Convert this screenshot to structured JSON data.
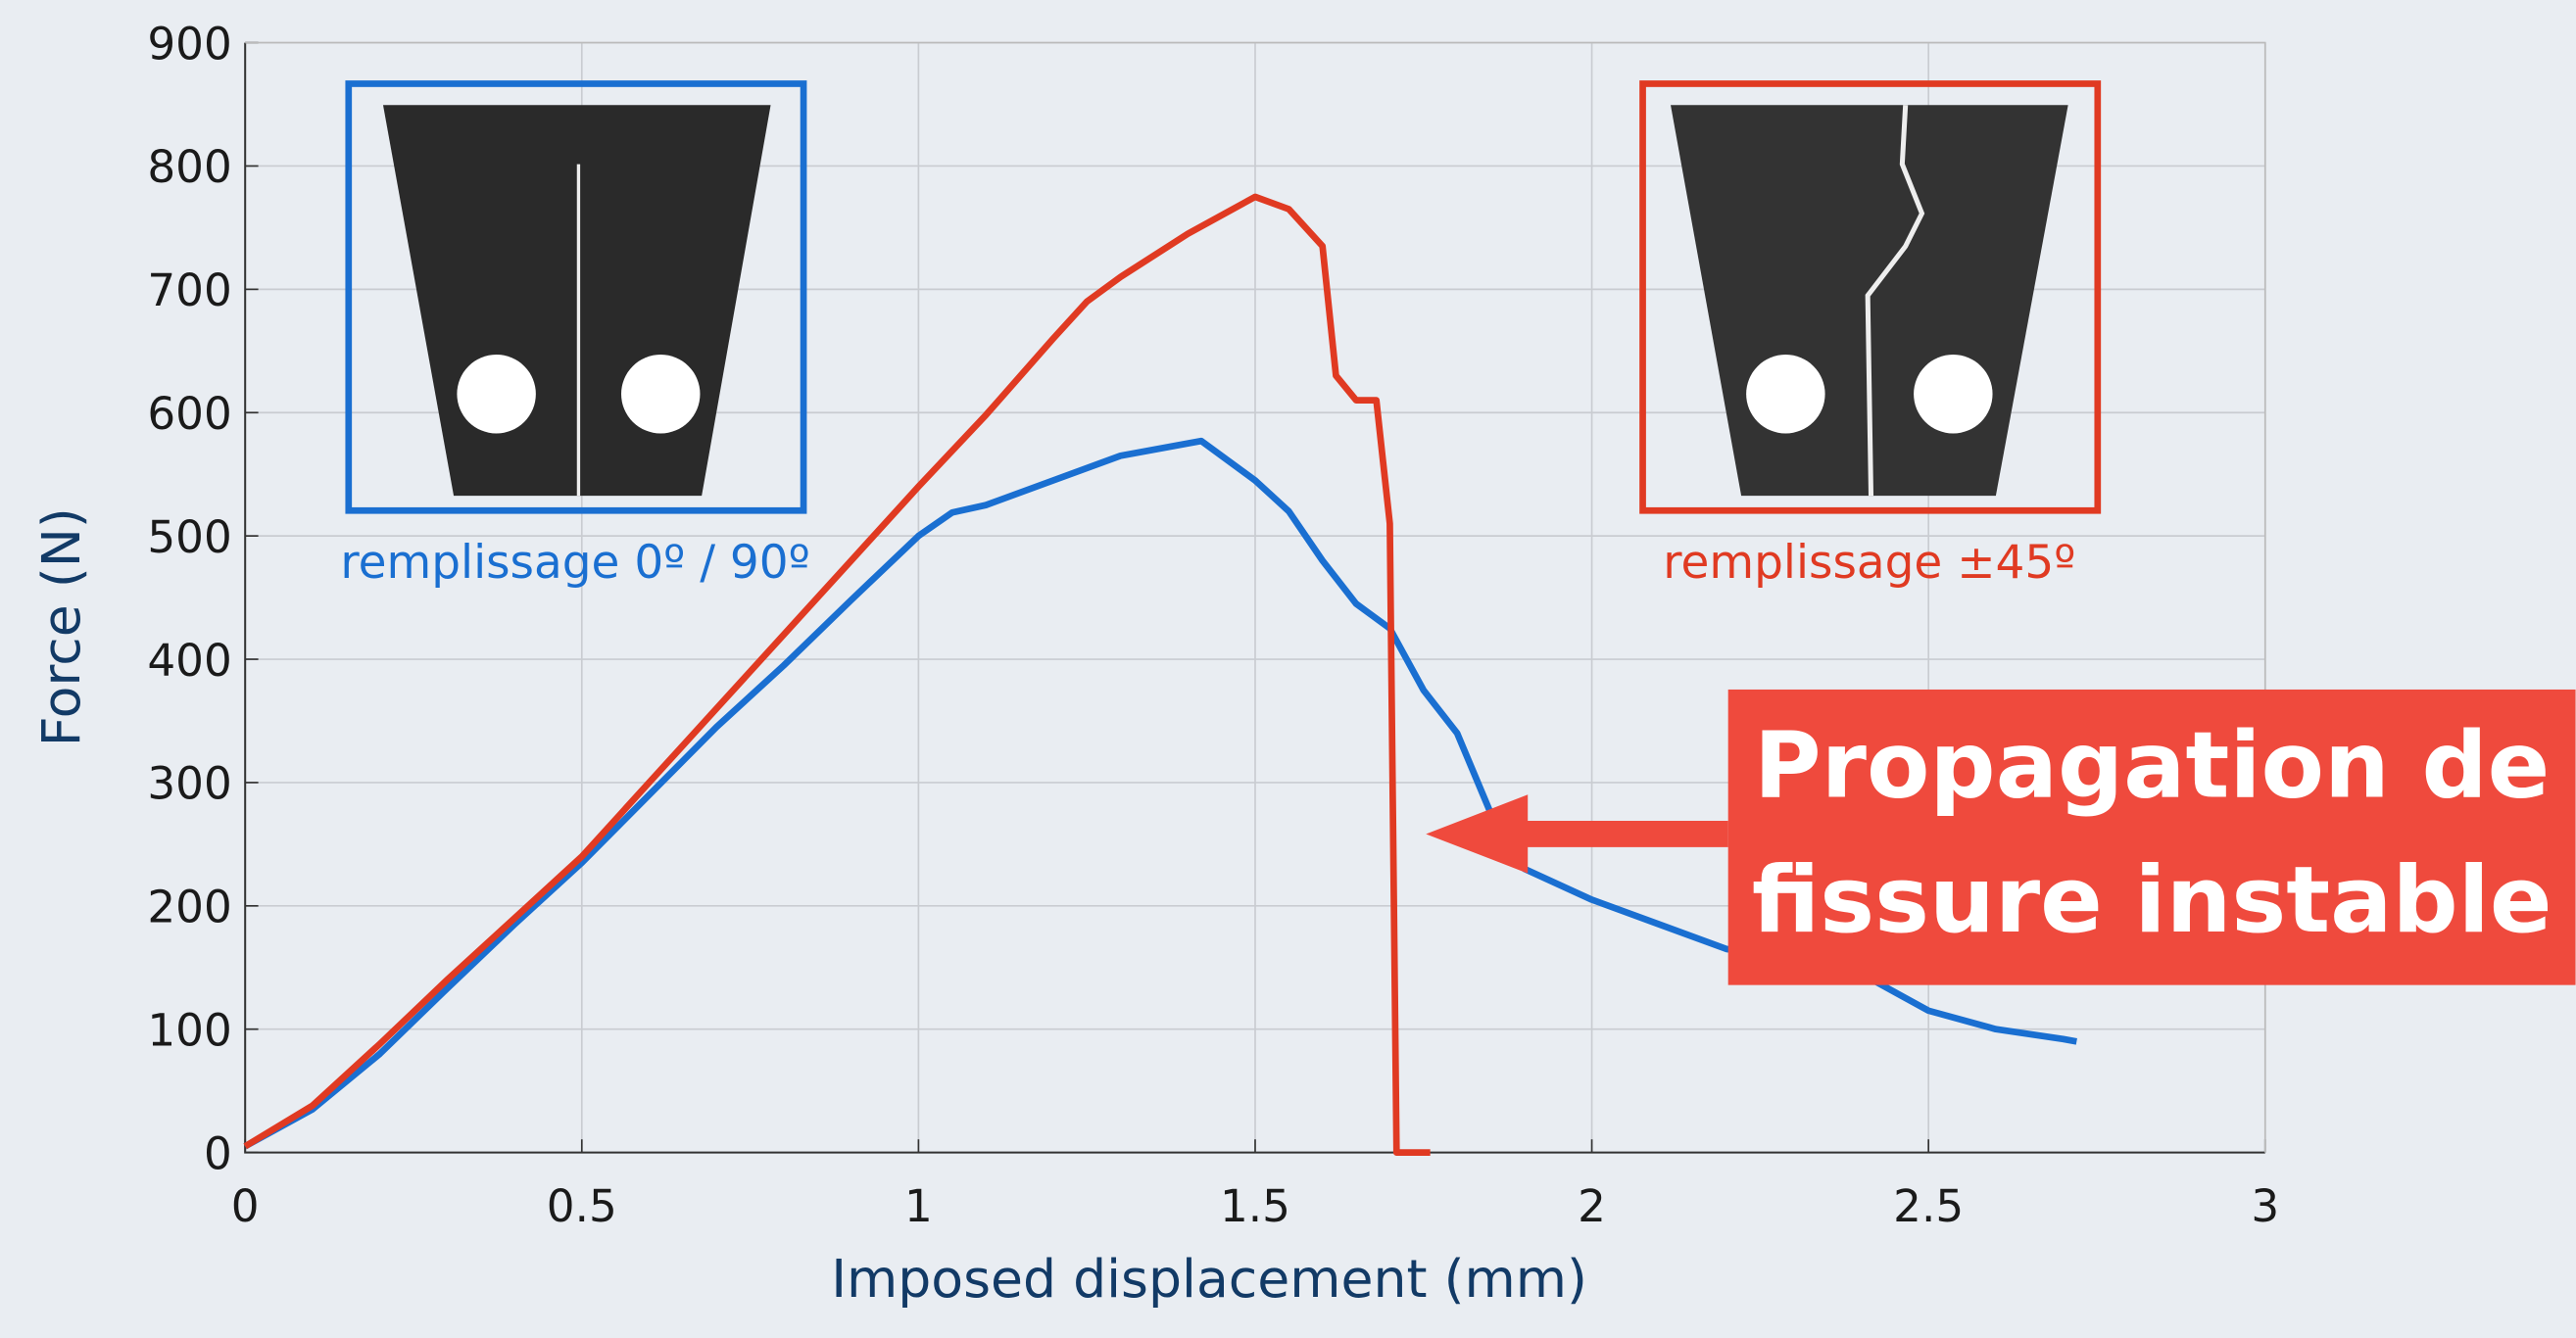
{
  "chart_data": {
    "type": "line",
    "x_label": "Imposed displacement (mm)",
    "y_label": "Force (N)",
    "xlim": [
      0,
      3
    ],
    "ylim": [
      0,
      900
    ],
    "xticks": [
      0,
      0.5,
      1,
      1.5,
      2,
      2.5,
      3
    ],
    "yticks": [
      0,
      100,
      200,
      300,
      400,
      500,
      600,
      700,
      800,
      900
    ],
    "grid": true,
    "series": [
      {
        "name": "remplissage 0º / 90º",
        "color": "#1a6fd1",
        "x": [
          0,
          0.1,
          0.2,
          0.3,
          0.4,
          0.5,
          0.6,
          0.7,
          0.8,
          0.9,
          1.0,
          1.05,
          1.1,
          1.2,
          1.3,
          1.4,
          1.42,
          1.5,
          1.55,
          1.6,
          1.65,
          1.7,
          1.75,
          1.8,
          1.85,
          1.9,
          2.0,
          2.1,
          2.2,
          2.3,
          2.4,
          2.5,
          2.6,
          2.7,
          2.72
        ],
        "values": [
          5,
          35,
          80,
          133,
          185,
          235,
          290,
          345,
          395,
          448,
          500,
          519,
          525,
          545,
          565,
          575,
          577,
          545,
          520,
          480,
          445,
          425,
          375,
          340,
          275,
          230,
          205,
          185,
          165,
          158,
          145,
          115,
          100,
          92,
          90
        ]
      },
      {
        "name": "remplissage ±45º",
        "color": "#e03a22",
        "x": [
          0,
          0.1,
          0.2,
          0.3,
          0.4,
          0.5,
          0.6,
          0.7,
          0.8,
          0.9,
          1.0,
          1.1,
          1.2,
          1.25,
          1.3,
          1.4,
          1.5,
          1.55,
          1.6,
          1.62,
          1.65,
          1.68,
          1.69,
          1.7,
          1.71,
          1.76
        ],
        "values": [
          5,
          38,
          88,
          140,
          190,
          240,
          300,
          360,
          420,
          480,
          540,
          598,
          660,
          690,
          710,
          745,
          775,
          765,
          735,
          630,
          610,
          610,
          560,
          510,
          0,
          0
        ]
      }
    ],
    "annotation": [
      "Propagation de",
      "fissure instable"
    ]
  }
}
